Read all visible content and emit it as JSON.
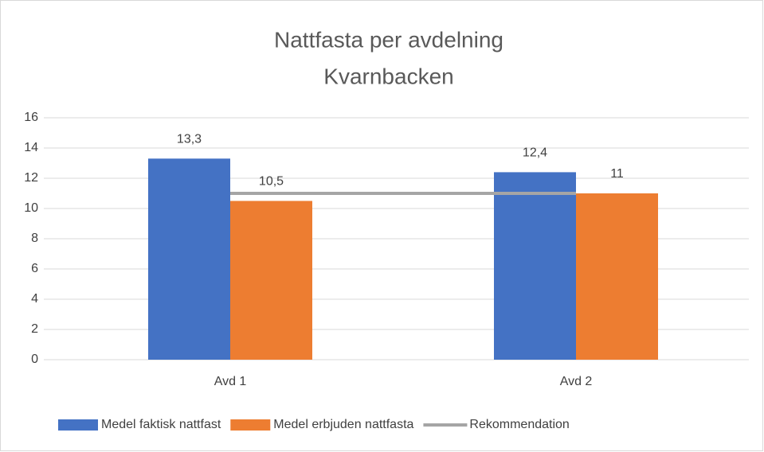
{
  "chart_data": {
    "type": "bar",
    "title": "Nattfasta per avdelning",
    "subtitle": "Kvarnbacken",
    "categories": [
      "Avd 1",
      "Avd 2"
    ],
    "series": [
      {
        "name": "Medel faktisk nattfast",
        "color": "#4472c4",
        "type": "bar",
        "values": [
          13.3,
          12.4
        ],
        "value_labels": [
          "13,3",
          "12,4"
        ]
      },
      {
        "name": "Medel erbjuden nattfasta",
        "color": "#ed7d31",
        "type": "bar",
        "values": [
          10.5,
          11
        ],
        "value_labels": [
          "10,5",
          "11"
        ]
      },
      {
        "name": "Rekommendation",
        "color": "#a5a5a5",
        "type": "line",
        "values": [
          11,
          11
        ]
      }
    ],
    "ylim": [
      0,
      16
    ],
    "yticks": [
      0,
      2,
      4,
      6,
      8,
      10,
      12,
      14,
      16
    ],
    "grid": true,
    "legend": "bottom"
  }
}
